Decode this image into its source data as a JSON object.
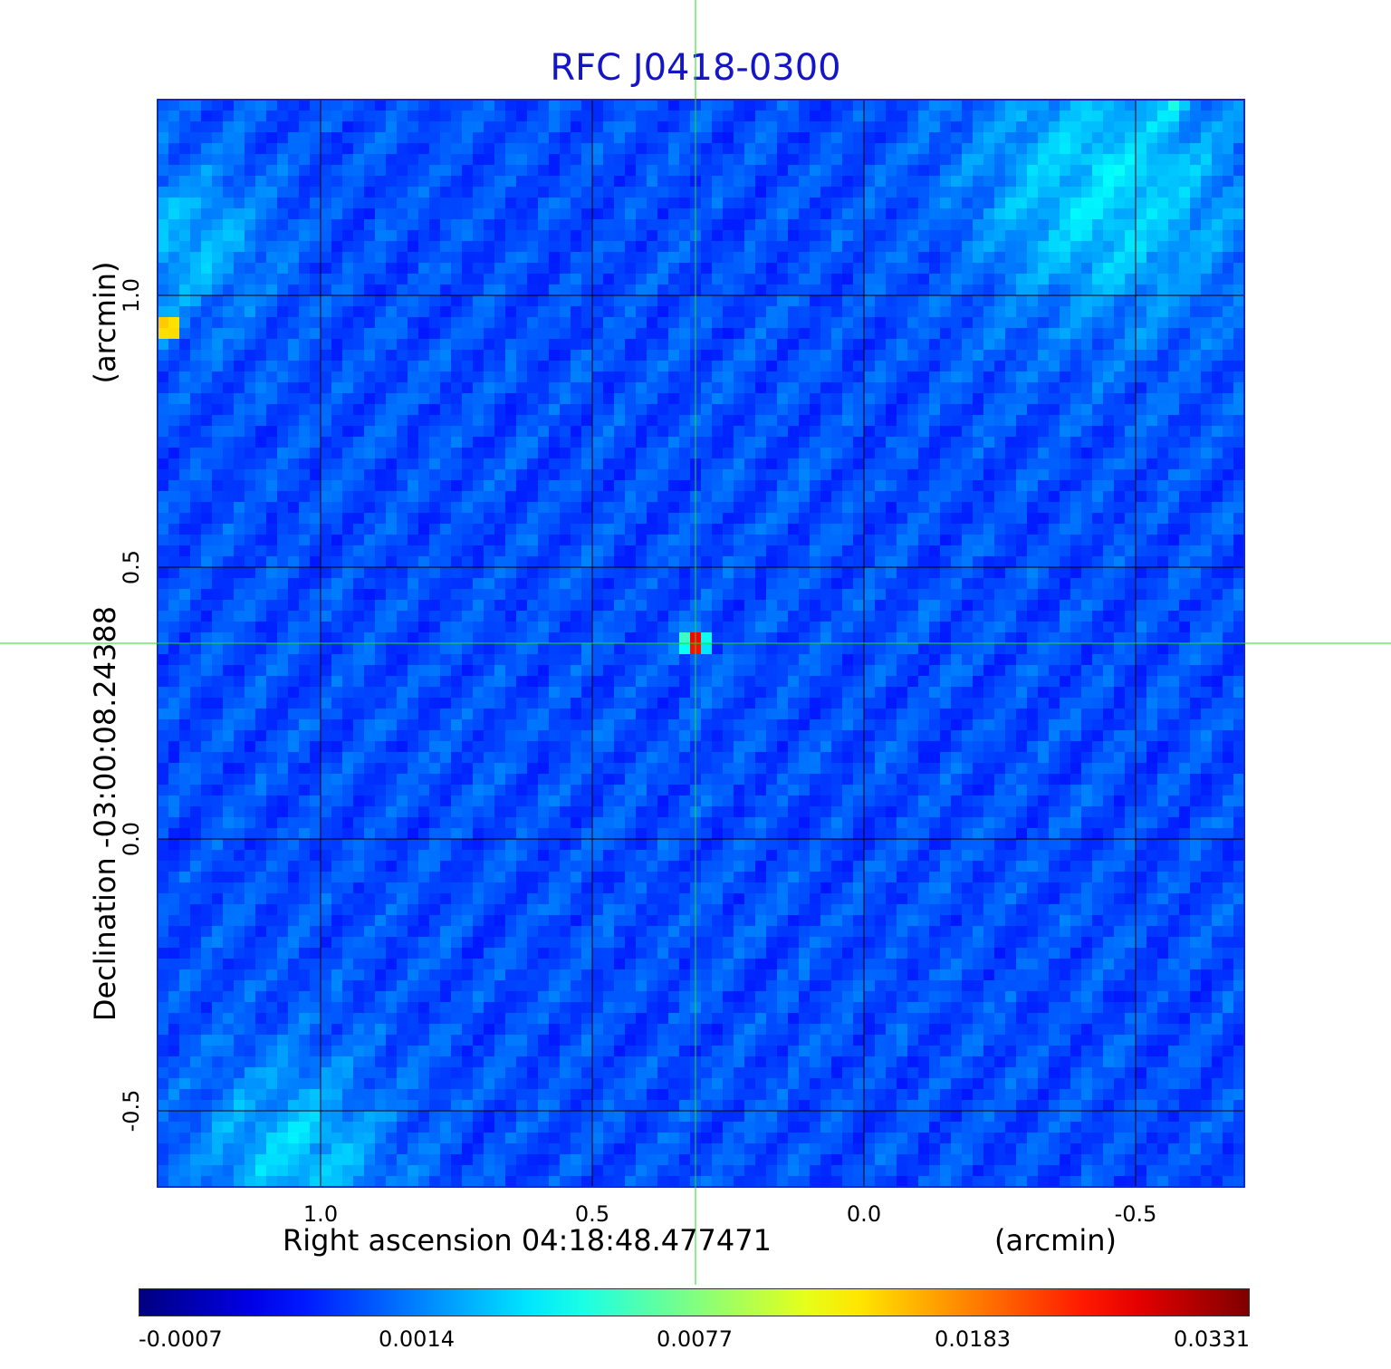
{
  "chart_data": {
    "type": "heatmap",
    "title": "RFC J0418-0300",
    "xlabel_left": "Right ascension  04:18:48.477471",
    "xlabel_right": "(arcmin)",
    "ylabel_left": "Declination  -03:00:08.24388",
    "ylabel_right": "(arcmin)",
    "x_ticks": [
      {
        "label": "1.0",
        "value": 1.0
      },
      {
        "label": "0.5",
        "value": 0.5
      },
      {
        "label": "0.0",
        "value": 0.0
      },
      {
        "label": "-0.5",
        "value": -0.5
      }
    ],
    "y_ticks": [
      {
        "label": "1.0",
        "value": 1.0
      },
      {
        "label": "0.5",
        "value": 0.5
      },
      {
        "label": "0.0",
        "value": 0.0
      },
      {
        "label": "-0.5",
        "value": -0.5
      }
    ],
    "xlim": [
      1.3,
      -0.7
    ],
    "ylim": [
      -0.64,
      1.36
    ],
    "grid": true,
    "crosshair": {
      "x": 0.31,
      "y": 0.36
    },
    "colorbar": {
      "ticks": [
        "-0.0007",
        "0.0014",
        "0.0077",
        "0.0183",
        "0.0331"
      ],
      "colormap": "jet"
    },
    "sources": [
      {
        "x": 0.31,
        "y": 0.36,
        "peak": 0.0331
      },
      {
        "x": 1.28,
        "y": 0.94,
        "peak": 0.028
      },
      {
        "x": -0.57,
        "y": 1.34,
        "peak": 0.004
      }
    ],
    "colors": {
      "title": "#1414c8",
      "crosshair": "#22dd22",
      "grid": "#000000",
      "frame": "#1428c8"
    }
  }
}
